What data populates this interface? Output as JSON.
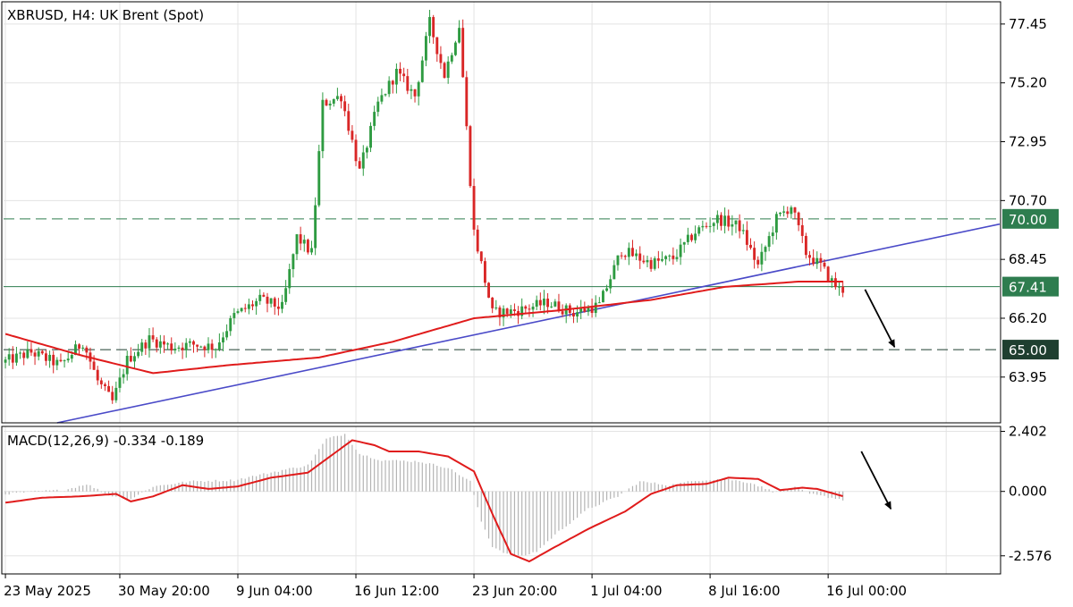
{
  "chart_data": [
    {
      "type": "candlestick",
      "title": "XBRUSD, H4:  UK Brent (Spot)",
      "y_ticks": [
        "77.45",
        "75.20",
        "72.95",
        "70.70",
        "68.45",
        "66.20",
        "63.95"
      ],
      "ylim": [
        62.2,
        78.3
      ],
      "x_ticks": [
        {
          "label": "23 May 2025",
          "bar": 0
        },
        {
          "label": "30 May 20:00",
          "bar": 31
        },
        {
          "label": "9 Jun 04:00",
          "bar": 63
        },
        {
          "label": "16 Jun 12:00",
          "bar": 95
        },
        {
          "label": "23 Jun 20:00",
          "bar": 127
        },
        {
          "label": "1 Jul 04:00",
          "bar": 159
        },
        {
          "label": "8 Jul 16:00",
          "bar": 191
        },
        {
          "label": "16 Jul 00:00",
          "bar": 223
        }
      ],
      "total_slots": 270,
      "bars_count": 228,
      "price_levels": [
        {
          "value": 70.0,
          "label": "70.00",
          "style": "dashed",
          "color": "#2e7d4f"
        },
        {
          "value": 67.41,
          "label": "67.41",
          "style": "solid",
          "color": "#2e7d4f"
        },
        {
          "value": 65.0,
          "label": "65.00",
          "style": "dashed",
          "color": "#1f3f30"
        }
      ],
      "key_points": [
        [
          0,
          64.5
        ],
        [
          8,
          64.9
        ],
        [
          16,
          64.4
        ],
        [
          22,
          65.3
        ],
        [
          26,
          63.8
        ],
        [
          30,
          63.0
        ],
        [
          34,
          64.6
        ],
        [
          40,
          65.4
        ],
        [
          46,
          65.1
        ],
        [
          52,
          65.2
        ],
        [
          58,
          65.1
        ],
        [
          63,
          66.3
        ],
        [
          70,
          66.9
        ],
        [
          76,
          66.6
        ],
        [
          80,
          69.3
        ],
        [
          84,
          68.7
        ],
        [
          87,
          74.4
        ],
        [
          92,
          74.7
        ],
        [
          97,
          71.8
        ],
        [
          102,
          74.4
        ],
        [
          107,
          75.6
        ],
        [
          112,
          74.7
        ],
        [
          116,
          77.5
        ],
        [
          120,
          75.5
        ],
        [
          124,
          77.4
        ],
        [
          128,
          69.5
        ],
        [
          133,
          66.4
        ],
        [
          140,
          66.5
        ],
        [
          148,
          66.8
        ],
        [
          155,
          66.4
        ],
        [
          162,
          66.7
        ],
        [
          168,
          68.8
        ],
        [
          176,
          68.3
        ],
        [
          182,
          68.5
        ],
        [
          188,
          69.5
        ],
        [
          194,
          70.0
        ],
        [
          200,
          69.7
        ],
        [
          205,
          68.2
        ],
        [
          210,
          70.0
        ],
        [
          214,
          70.5
        ],
        [
          218,
          68.7
        ],
        [
          222,
          68.2
        ],
        [
          225,
          67.6
        ],
        [
          227,
          67.3
        ]
      ],
      "ma_points": [
        [
          0,
          65.6
        ],
        [
          20,
          64.8
        ],
        [
          40,
          64.1
        ],
        [
          60,
          64.4
        ],
        [
          85,
          64.7
        ],
        [
          105,
          65.3
        ],
        [
          127,
          66.2
        ],
        [
          150,
          66.5
        ],
        [
          175,
          66.9
        ],
        [
          195,
          67.4
        ],
        [
          215,
          67.6
        ],
        [
          227,
          67.6
        ]
      ],
      "trendline": {
        "start": [
          14,
          62.2
        ],
        "end": [
          270,
          69.8
        ],
        "color": "#4a4ac8"
      },
      "arrow": {
        "from": [
          233,
          67.3
        ],
        "to": [
          241,
          65.1
        ]
      }
    },
    {
      "type": "macd",
      "title": "MACD(12,26,9) -0.334 -0.189",
      "y_ticks": [
        "2.402",
        "0.000",
        "-2.576"
      ],
      "ylim": [
        -3.3,
        2.6
      ],
      "hist_points": [
        [
          0,
          -0.1
        ],
        [
          8,
          0.0
        ],
        [
          16,
          0.05
        ],
        [
          22,
          0.3
        ],
        [
          28,
          -0.15
        ],
        [
          34,
          -0.3
        ],
        [
          40,
          0.2
        ],
        [
          50,
          0.4
        ],
        [
          62,
          0.45
        ],
        [
          75,
          0.85
        ],
        [
          82,
          1.05
        ],
        [
          87,
          2.1
        ],
        [
          92,
          2.3
        ],
        [
          96,
          1.5
        ],
        [
          102,
          1.25
        ],
        [
          112,
          1.2
        ],
        [
          120,
          0.95
        ],
        [
          126,
          0.4
        ],
        [
          129,
          -1.2
        ],
        [
          132,
          -2.2
        ],
        [
          136,
          -2.5
        ],
        [
          140,
          -2.6
        ],
        [
          144,
          -2.4
        ],
        [
          150,
          -1.6
        ],
        [
          158,
          -0.7
        ],
        [
          166,
          -0.2
        ],
        [
          172,
          0.4
        ],
        [
          180,
          0.25
        ],
        [
          188,
          0.45
        ],
        [
          195,
          0.5
        ],
        [
          202,
          0.35
        ],
        [
          208,
          0.0
        ],
        [
          214,
          0.15
        ],
        [
          218,
          -0.1
        ],
        [
          227,
          -0.33
        ]
      ],
      "signal_points": [
        [
          0,
          -0.45
        ],
        [
          10,
          -0.25
        ],
        [
          20,
          -0.2
        ],
        [
          30,
          -0.1
        ],
        [
          34,
          -0.4
        ],
        [
          40,
          -0.2
        ],
        [
          48,
          0.25
        ],
        [
          55,
          0.1
        ],
        [
          63,
          0.2
        ],
        [
          72,
          0.55
        ],
        [
          82,
          0.75
        ],
        [
          88,
          1.4
        ],
        [
          94,
          2.05
        ],
        [
          100,
          1.85
        ],
        [
          104,
          1.6
        ],
        [
          112,
          1.6
        ],
        [
          120,
          1.4
        ],
        [
          127,
          0.8
        ],
        [
          132,
          -0.9
        ],
        [
          137,
          -2.5
        ],
        [
          142,
          -2.8
        ],
        [
          148,
          -2.3
        ],
        [
          158,
          -1.5
        ],
        [
          168,
          -0.8
        ],
        [
          175,
          -0.1
        ],
        [
          182,
          0.25
        ],
        [
          190,
          0.3
        ],
        [
          196,
          0.55
        ],
        [
          204,
          0.5
        ],
        [
          210,
          0.05
        ],
        [
          216,
          0.15
        ],
        [
          220,
          0.1
        ],
        [
          227,
          -0.19
        ]
      ],
      "arrow": {
        "from": [
          232,
          1.6
        ],
        "to": [
          240,
          -0.7
        ]
      }
    }
  ]
}
